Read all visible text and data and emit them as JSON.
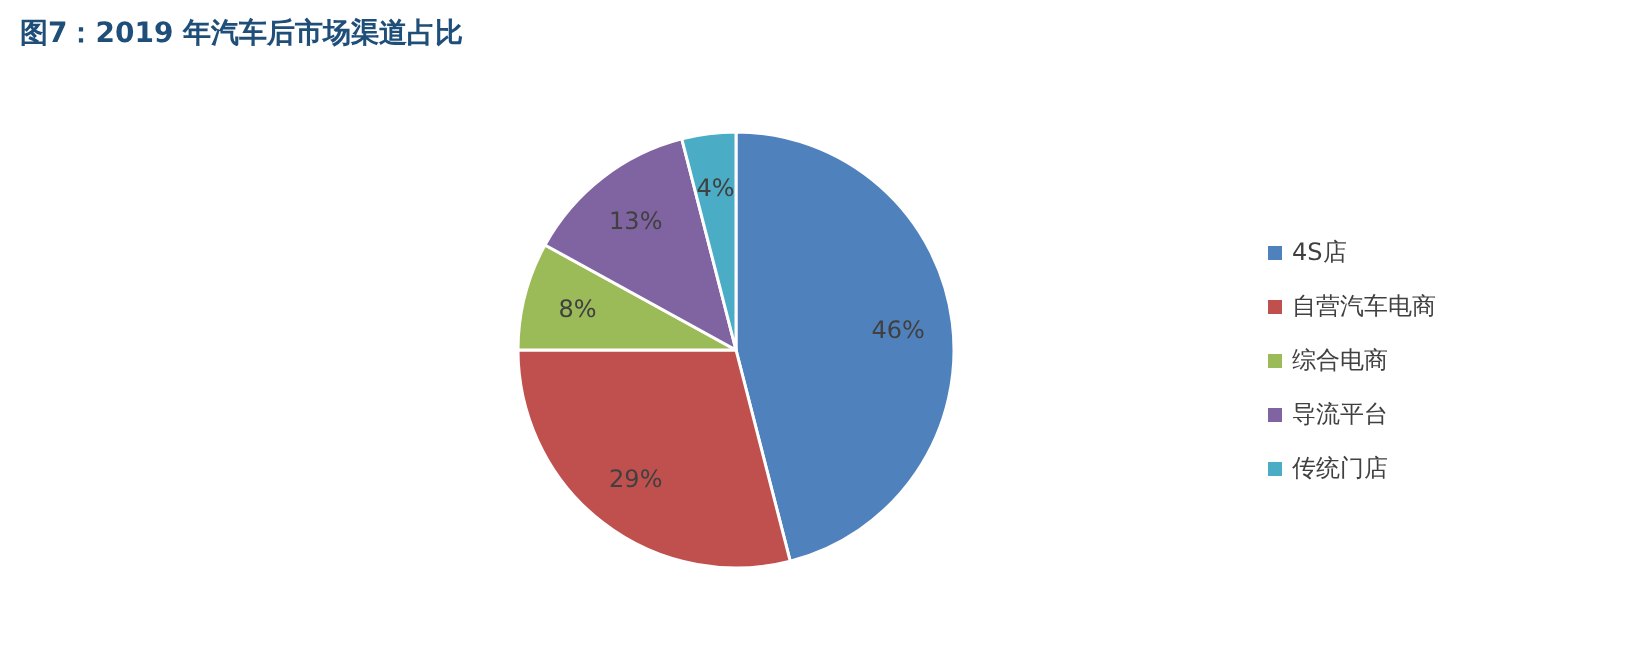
{
  "chart_data": {
    "type": "pie",
    "title": "图7：2019 年汽车后市场渠道占比",
    "categories": [
      "4S店",
      "自营汽车电商",
      "综合电商",
      "导流平台",
      "传统门店"
    ],
    "values": [
      46,
      29,
      8,
      13,
      4
    ],
    "colors": [
      "#4f81bd",
      "#c0504d",
      "#9bbb59",
      "#8064a2",
      "#4bacc6"
    ],
    "value_labels": [
      "46%",
      "29%",
      "8%",
      "13%",
      "4%"
    ],
    "legend": "right"
  }
}
